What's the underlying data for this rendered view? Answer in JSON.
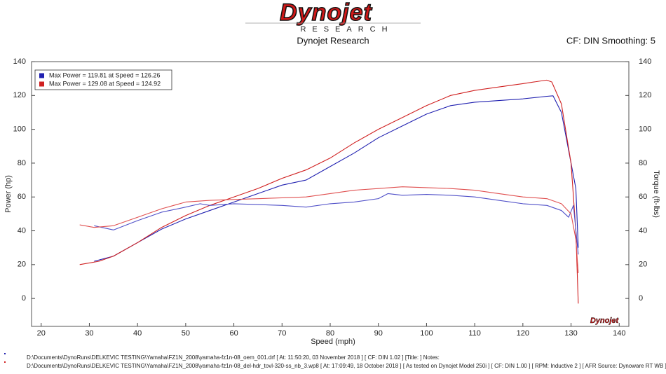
{
  "chart_data": {
    "type": "line",
    "logo": "Dynojet",
    "logo_subtitle": "RESEARCH",
    "title": "Dynojet Research",
    "subtitle": "CF: DIN Smoothing: 5",
    "xlabel": "Speed (mph)",
    "ylabel": "Power (hp)",
    "y2label": "Torque (ft-lbs)",
    "xlim": [
      18,
      142
    ],
    "xticks": [
      20,
      30,
      40,
      50,
      60,
      70,
      80,
      90,
      100,
      110,
      120,
      130,
      140
    ],
    "ylim": [
      -16.5,
      140
    ],
    "yticks": [
      0,
      20,
      40,
      60,
      80,
      100,
      120,
      140
    ],
    "y2lim": [
      -16.5,
      140
    ],
    "y2ticks": [
      0,
      20,
      40,
      60,
      80,
      100,
      120,
      140
    ],
    "grid": false,
    "legend": "top-left",
    "series": [
      {
        "name": "Max Power = 119.81 at Speed = 126.26",
        "color": "#2020b0",
        "x": [
          31,
          35,
          40,
          45,
          50,
          55,
          60,
          65,
          70,
          75,
          80,
          85,
          90,
          95,
          100,
          105,
          110,
          115,
          120,
          125,
          126.26,
          128,
          130,
          131,
          131.5
        ],
        "values": [
          22,
          25,
          33,
          41,
          47,
          52,
          57,
          62,
          67,
          70,
          78,
          86,
          95,
          102,
          109,
          114,
          116,
          117,
          118,
          119.5,
          119.81,
          110,
          80,
          65,
          30
        ]
      },
      {
        "name": "Max Power = 129.08 at Speed = 124.92",
        "color": "#d02020",
        "x": [
          28,
          32,
          35,
          40,
          45,
          50,
          55,
          60,
          65,
          70,
          75,
          80,
          85,
          90,
          95,
          100,
          105,
          110,
          115,
          120,
          124.92,
          126,
          128,
          130,
          131,
          131.5
        ],
        "values": [
          20,
          22,
          25,
          33,
          42,
          49,
          55,
          60,
          65,
          71,
          76,
          83,
          92,
          100,
          107,
          114,
          120,
          123,
          125,
          127,
          129.08,
          128,
          115,
          80,
          40,
          -3
        ]
      },
      {
        "color": "#5050c8",
        "axis": "y2",
        "x": [
          31,
          35,
          40,
          45,
          50,
          53,
          55,
          60,
          65,
          70,
          75,
          80,
          85,
          90,
          92,
          95,
          100,
          105,
          110,
          115,
          120,
          125,
          128,
          129.5,
          130.5,
          131.5
        ],
        "values": [
          43,
          40.5,
          46,
          51,
          54,
          56,
          55,
          56,
          55.5,
          55,
          54,
          56,
          57,
          59,
          62,
          61,
          61.5,
          61,
          60,
          58,
          56,
          55,
          52,
          48,
          55,
          26
        ]
      },
      {
        "color": "#e05050",
        "axis": "y2",
        "x": [
          28,
          31,
          35,
          40,
          45,
          50,
          55,
          60,
          65,
          70,
          75,
          80,
          85,
          90,
          95,
          100,
          105,
          110,
          115,
          120,
          125,
          128,
          130,
          131,
          131.5
        ],
        "values": [
          43.5,
          42,
          43,
          48,
          53,
          57,
          58,
          58.5,
          59,
          59.5,
          60,
          62,
          64,
          65,
          66,
          65.5,
          65,
          64,
          62,
          60,
          59,
          56,
          50,
          35,
          15
        ]
      }
    ],
    "footnotes": [
      {
        "text": "D:\\Documents\\DynoRuns\\DELKEVIC TESTING\\Yamaha\\FZ1N_2008\\yamaha-fz1n-08_oem_001.drf [ At: 11:50:20, 03 November 2018 ] [ CF: DIN 1.02 ] [Title: ]  Notes:",
        "color": "#2020b0"
      },
      {
        "text": "D:\\Documents\\DynoRuns\\DELKEVIC TESTING\\Yamaha\\FZ1N_2008\\yamaha-fz1n-08_del-hdr_tovl-320-ss_nb_3.wp8 [ At: 17:09:49, 18 October 2018 ] [ As tested on Dynojet Model 250i ] [ CF: DIN 1.00 ] [ RPM: Inductive 2 ] [ AFR Source: Dynoware RT WB ]",
        "color": "#d02020"
      }
    ]
  }
}
